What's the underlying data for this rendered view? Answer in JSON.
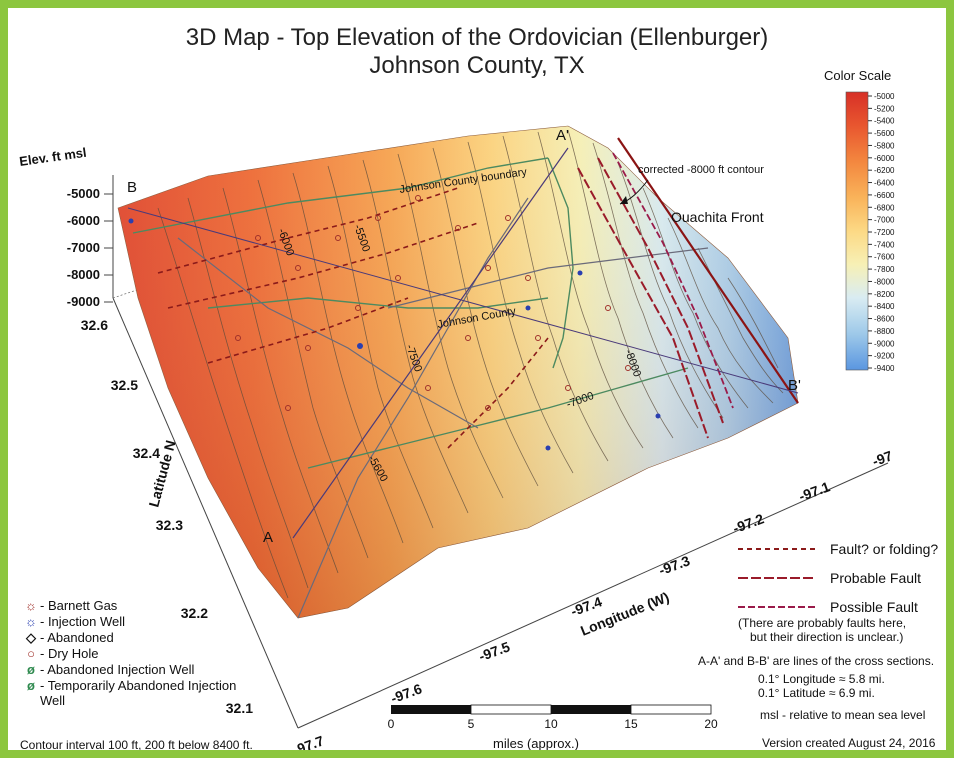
{
  "title": "3D Map - Top Elevation of the Ordovician (Ellenburger)",
  "subtitle": "Johnson County, TX",
  "color_scale": {
    "title": "Color Scale",
    "ticks": [
      "-5000",
      "-5200",
      "-5400",
      "-5600",
      "-5800",
      "-6000",
      "-6200",
      "-6400",
      "-6600",
      "-6800",
      "-7000",
      "-7200",
      "-7400",
      "-7600",
      "-7800",
      "-8000",
      "-8200",
      "-8400",
      "-8600",
      "-8800",
      "-9000",
      "-9200",
      "-9400"
    ],
    "colors": [
      "#d73027",
      "#e8562f",
      "#f3873f",
      "#f9b35a",
      "#fcd985",
      "#f7f0b5",
      "#d9ecf2",
      "#9ec9e9",
      "#5a96e0"
    ]
  },
  "elevation_axis": {
    "label": "Elev. ft msl",
    "ticks": [
      "-5000",
      "-6000",
      "-7000",
      "-8000",
      "-9000"
    ]
  },
  "latitude_axis": {
    "label": "Latitude N",
    "ticks": [
      "32.6",
      "32.5",
      "32.4",
      "32.3",
      "32.2",
      "32.1"
    ]
  },
  "longitude_axis": {
    "label": "Longitude (W)",
    "ticks": [
      "-97.7",
      "-97.6",
      "-97.5",
      "-97.4",
      "-97.3",
      "-97.2",
      "-97.1",
      "-97"
    ]
  },
  "map_labels": {
    "a": "A",
    "a_prime": "A'",
    "b": "B",
    "b_prime": "B'",
    "county_boundary": "Johnson County boundary",
    "county": "Johnson County",
    "corrected_contour": "corrected -8000 ft contour",
    "ouachita": "Ouachita Front",
    "c_5500": "-5500",
    "c_5600": "-5600",
    "c_6000": "-6000",
    "c_7000": "-7000",
    "c_7500": "-7500",
    "c_8000": "-8000"
  },
  "well_legend": [
    {
      "symbol": "☼",
      "label": "- Barnett Gas",
      "color": "#a0302a"
    },
    {
      "symbol": "☼",
      "label": "- Injection Well",
      "color": "#2a3fb0"
    },
    {
      "symbol": "◇",
      "label": "- Abandoned",
      "color": "#111111"
    },
    {
      "symbol": "○",
      "label": "- Dry Hole",
      "color": "#a0302a"
    },
    {
      "symbol": "ø",
      "label": "- Abandoned Injection Well",
      "color": "#2f8a4f"
    },
    {
      "symbol": "ø",
      "label": "- Temporarily Abandoned Injection Well",
      "color": "#2f8a4f"
    }
  ],
  "fault_legend": [
    {
      "label": "Fault? or folding?",
      "color": "#8b1a1a",
      "dash": "5,4"
    },
    {
      "label": "Probable Fault",
      "color": "#9a1b2a",
      "dash": "10,3"
    },
    {
      "label": "Possible Fault",
      "color": "#9a1b4a",
      "dash": "7,3"
    }
  ],
  "notes": {
    "faults_note_1": "(There are probably faults here,",
    "faults_note_2": "but their direction is unclear.)",
    "cross_sections": "A-A' and B-B' are lines of the cross sections.",
    "lon_conv": "0.1° Longitude ≈ 5.8 mi.",
    "lat_conv": "0.1° Latitude ≈ 6.9 mi.",
    "msl": "msl - relative to mean sea level",
    "contour_interval": "Contour interval 100 ft, 200 ft below 8400 ft.",
    "version": "Version created August 24, 2016"
  },
  "scale_bar": {
    "ticks": [
      "0",
      "5",
      "10",
      "15",
      "20"
    ],
    "unit": "miles (approx.)"
  }
}
